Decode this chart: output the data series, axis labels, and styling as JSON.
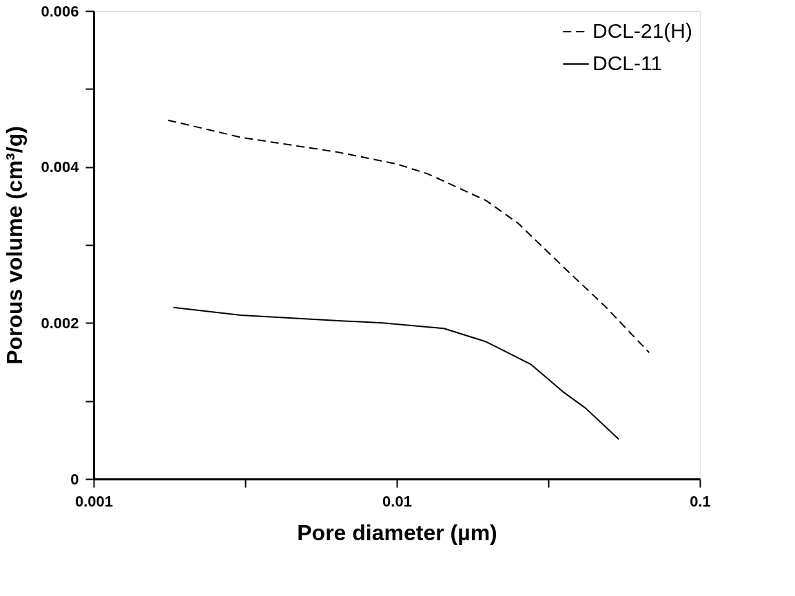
{
  "chart_data": {
    "type": "line",
    "xlabel": "Pore diameter (µm)",
    "ylabel": "Porous volume (cm³/g)",
    "log": "x",
    "grid": false,
    "legend": "top right",
    "marker": "none",
    "xlim": [
      0.001,
      0.1
    ],
    "xticks": [
      0.001,
      {
        "value": 0.00316,
        "label": null
      },
      0.01,
      {
        "value": 0.0316,
        "label": null
      },
      0.1
    ],
    "ylim": [
      0,
      0.006
    ],
    "yticks": [
      0,
      {
        "value": 0.001,
        "label": null
      },
      0.002,
      {
        "value": 0.003,
        "label": null
      },
      0.004,
      {
        "value": 0.005,
        "label": null
      },
      0.006
    ],
    "series": [
      {
        "name": "DCL-21(H)",
        "color": "#000000",
        "line_style": "dashed",
        "x": [
          0.00176,
          0.00306,
          0.0064,
          0.00996,
          0.0127,
          0.0197,
          0.0251,
          0.0379,
          0.0485,
          0.068
        ],
        "values": [
          0.0046,
          0.00438,
          0.00419,
          0.00404,
          0.00391,
          0.00357,
          0.00328,
          0.00261,
          0.00222,
          0.00162
        ]
      },
      {
        "name": "DCL-11",
        "color": "#000000",
        "line_style": "solid",
        "x": [
          0.00183,
          0.00306,
          0.0064,
          0.009,
          0.0143,
          0.0197,
          0.0277,
          0.0353,
          0.0419,
          0.054
        ],
        "values": [
          0.0022,
          0.0021,
          0.00203,
          0.002,
          0.00193,
          0.00176,
          0.00147,
          0.00112,
          0.00091,
          0.00051
        ]
      }
    ]
  }
}
